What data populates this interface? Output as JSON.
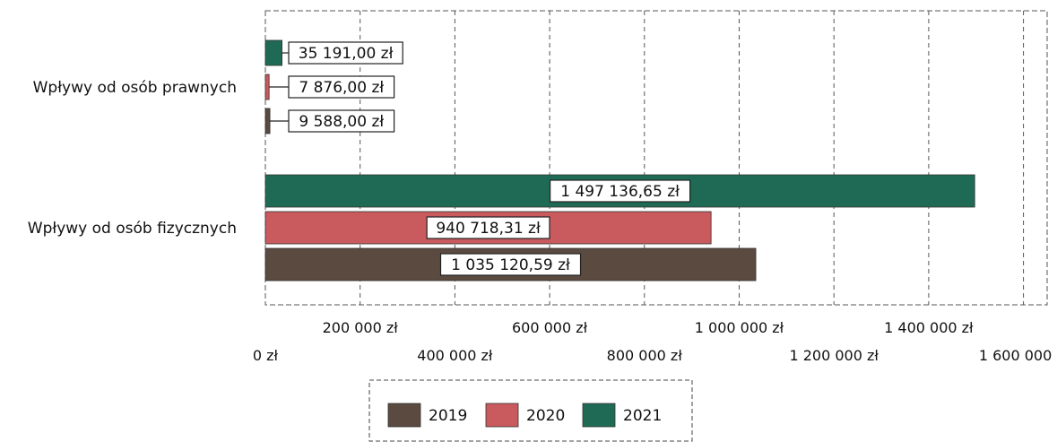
{
  "chart_data": {
    "type": "bar",
    "orientation": "horizontal",
    "categories": [
      "Wpływy od osób prawnych",
      "Wpływy od osób fizycznych"
    ],
    "series": [
      {
        "name": "2019",
        "values": [
          9588.0,
          1035120.59
        ],
        "labels": [
          "9 588,00 zł",
          "1 035 120,59 zł"
        ]
      },
      {
        "name": "2020",
        "values": [
          7876.0,
          940718.31
        ],
        "labels": [
          "7 876,00 zł",
          "940 718,31 zł"
        ]
      },
      {
        "name": "2021",
        "values": [
          35191.0,
          1497136.65
        ],
        "labels": [
          "35 191,00 zł",
          "1 497 136,65 zł"
        ]
      }
    ],
    "xlim": [
      0,
      1650000
    ],
    "ticks": [
      0,
      200000,
      400000,
      600000,
      800000,
      1000000,
      1200000,
      1400000,
      1600000
    ],
    "tick_labels": [
      "0 zł",
      "200 000 zł",
      "400 000 zł",
      "600 000 zł",
      "800 000 zł",
      "1 000 000 zł",
      "1 200 000 zł",
      "1 400 000 zł",
      "1 600 000 zł"
    ],
    "grid": true,
    "legend_position": "bottom",
    "title": "",
    "xlabel": "",
    "ylabel": ""
  },
  "colors": {
    "2019": "#5a4a40",
    "2020": "#c95a5e",
    "2021": "#1f6a55"
  }
}
